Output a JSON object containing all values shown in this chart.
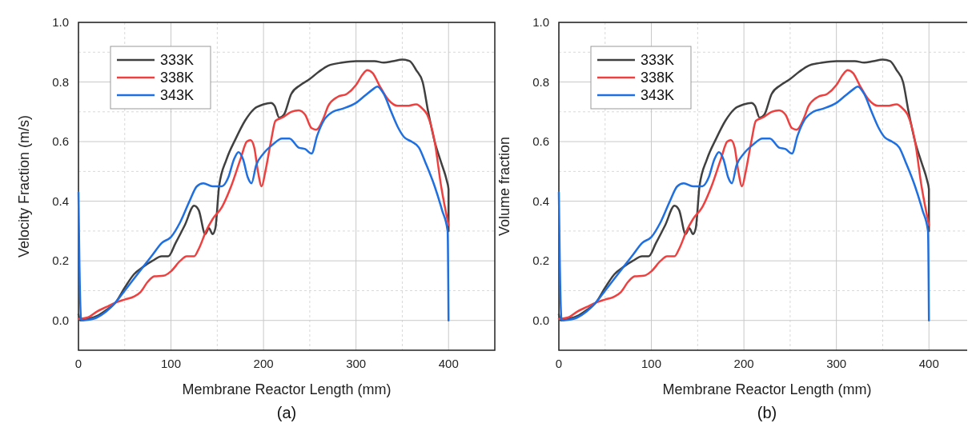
{
  "chart_data": [
    {
      "type": "line",
      "xlabel": "Membrane Reactor Length (mm)",
      "ylabel": "Velocity Fraction (m/s)",
      "annotations": [
        "(a)"
      ],
      "xlim": [
        0,
        450
      ],
      "ylim": [
        -0.1,
        1.0
      ],
      "xticks": [
        0,
        100,
        200,
        300,
        400
      ],
      "yticks": [
        {
          "value": 0,
          "label": "0.0"
        },
        {
          "value": 0.2,
          "label": "0.2"
        },
        {
          "value": 0.4,
          "label": "0.4"
        },
        {
          "value": 0.6,
          "label": "0.6"
        },
        {
          "value": 0.8,
          "label": "0.8"
        },
        {
          "value": 1.0,
          "label": "1.0"
        }
      ],
      "grid": true,
      "legend": "top left",
      "marker": "none",
      "line_style": "solid",
      "series": [
        {
          "name": "333K",
          "color": "#404040",
          "x": [
            0,
            2,
            10,
            20,
            30,
            40,
            50,
            60,
            70,
            80,
            90,
            97,
            105,
            115,
            125,
            130,
            137,
            141,
            145,
            148,
            152,
            160,
            170,
            180,
            190,
            200,
            208,
            212,
            217,
            222,
            230,
            240,
            250,
            260,
            270,
            285,
            300,
            320,
            330,
            340,
            350,
            358,
            365,
            372,
            378,
            385,
            392,
            398,
            400,
            400
          ],
          "values": [
            0.02,
            0,
            0.005,
            0.015,
            0.035,
            0.06,
            0.11,
            0.155,
            0.18,
            0.2,
            0.215,
            0.215,
            0.26,
            0.32,
            0.385,
            0.37,
            0.29,
            0.31,
            0.29,
            0.31,
            0.45,
            0.54,
            0.61,
            0.67,
            0.71,
            0.725,
            0.73,
            0.72,
            0.68,
            0.69,
            0.76,
            0.79,
            0.81,
            0.835,
            0.855,
            0.865,
            0.87,
            0.87,
            0.865,
            0.87,
            0.875,
            0.87,
            0.84,
            0.8,
            0.7,
            0.6,
            0.53,
            0.47,
            0.44,
            0.3
          ]
        },
        {
          "name": "338K",
          "color": "#ef4040",
          "x": [
            0,
            10,
            20,
            30,
            40,
            50,
            60,
            67,
            75,
            82,
            92,
            100,
            110,
            117,
            125,
            130,
            138,
            145,
            155,
            165,
            175,
            182,
            186,
            190,
            194,
            198,
            202,
            208,
            213,
            220,
            230,
            238,
            245,
            252,
            257,
            265,
            270,
            280,
            290,
            300,
            307,
            312,
            318,
            325,
            335,
            345,
            355,
            365,
            372,
            377,
            385,
            392,
            400
          ],
          "values": [
            0.005,
            0.01,
            0.03,
            0.045,
            0.06,
            0.07,
            0.08,
            0.095,
            0.13,
            0.148,
            0.15,
            0.165,
            0.2,
            0.215,
            0.215,
            0.24,
            0.3,
            0.34,
            0.38,
            0.45,
            0.54,
            0.6,
            0.605,
            0.58,
            0.5,
            0.45,
            0.5,
            0.6,
            0.67,
            0.68,
            0.7,
            0.705,
            0.69,
            0.645,
            0.64,
            0.68,
            0.72,
            0.75,
            0.76,
            0.79,
            0.825,
            0.84,
            0.83,
            0.79,
            0.74,
            0.72,
            0.72,
            0.725,
            0.71,
            0.69,
            0.6,
            0.45,
            0.32
          ]
        },
        {
          "name": "343K",
          "color": "#1f6fe0",
          "x": [
            0,
            1,
            3,
            10,
            20,
            30,
            40,
            50,
            60,
            70,
            80,
            90,
            100,
            110,
            120,
            128,
            135,
            145,
            155,
            162,
            168,
            173,
            178,
            183,
            187,
            192,
            200,
            210,
            220,
            228,
            238,
            245,
            252,
            258,
            265,
            275,
            285,
            300,
            310,
            318,
            323,
            330,
            338,
            345,
            352,
            360,
            368,
            375,
            385,
            393,
            399,
            400
          ],
          "values": [
            0.43,
            0.2,
            0,
            0.002,
            0.01,
            0.03,
            0.06,
            0.1,
            0.14,
            0.18,
            0.22,
            0.26,
            0.28,
            0.33,
            0.4,
            0.45,
            0.46,
            0.45,
            0.45,
            0.48,
            0.54,
            0.565,
            0.54,
            0.48,
            0.46,
            0.52,
            0.56,
            0.59,
            0.61,
            0.61,
            0.58,
            0.575,
            0.56,
            0.62,
            0.67,
            0.7,
            0.71,
            0.73,
            0.755,
            0.775,
            0.785,
            0.76,
            0.7,
            0.65,
            0.615,
            0.6,
            0.58,
            0.53,
            0.45,
            0.37,
            0.3,
            0
          ]
        }
      ]
    },
    {
      "type": "line",
      "xlabel": "Membrane Reactor Length (mm)",
      "ylabel": "Volume fraction",
      "annotations": [
        "(b)"
      ],
      "xlim": [
        0,
        450
      ],
      "ylim": [
        -0.1,
        1.0
      ],
      "xticks": [
        0,
        100,
        200,
        300,
        400
      ],
      "yticks": [
        {
          "value": 0,
          "label": "0.0"
        },
        {
          "value": 0.2,
          "label": "0.2"
        },
        {
          "value": 0.4,
          "label": "0.4"
        },
        {
          "value": 0.6,
          "label": "0.6"
        },
        {
          "value": 0.8,
          "label": "0.8"
        },
        {
          "value": 1.0,
          "label": "1.0"
        }
      ],
      "grid": true,
      "legend": "top left",
      "marker": "none",
      "line_style": "solid",
      "series": [
        {
          "name": "333K",
          "color": "#404040",
          "x": [
            0,
            2,
            10,
            20,
            30,
            40,
            50,
            60,
            70,
            80,
            90,
            97,
            105,
            115,
            125,
            130,
            137,
            141,
            145,
            148,
            152,
            160,
            170,
            180,
            190,
            200,
            208,
            212,
            217,
            222,
            230,
            240,
            250,
            260,
            270,
            285,
            300,
            320,
            330,
            340,
            350,
            358,
            365,
            372,
            378,
            385,
            392,
            398,
            400,
            400
          ],
          "values": [
            0.02,
            0,
            0.005,
            0.015,
            0.035,
            0.06,
            0.11,
            0.155,
            0.18,
            0.2,
            0.215,
            0.215,
            0.26,
            0.32,
            0.385,
            0.37,
            0.29,
            0.31,
            0.29,
            0.31,
            0.45,
            0.54,
            0.61,
            0.67,
            0.71,
            0.725,
            0.73,
            0.72,
            0.68,
            0.69,
            0.76,
            0.79,
            0.81,
            0.835,
            0.855,
            0.865,
            0.87,
            0.87,
            0.865,
            0.87,
            0.875,
            0.87,
            0.84,
            0.8,
            0.7,
            0.6,
            0.53,
            0.47,
            0.44,
            0.3
          ]
        },
        {
          "name": "338K",
          "color": "#ef4040",
          "x": [
            0,
            10,
            20,
            30,
            40,
            50,
            60,
            67,
            75,
            82,
            92,
            100,
            110,
            117,
            125,
            130,
            138,
            145,
            155,
            165,
            175,
            182,
            186,
            190,
            194,
            198,
            202,
            208,
            213,
            220,
            230,
            238,
            245,
            252,
            257,
            265,
            270,
            280,
            290,
            300,
            307,
            312,
            318,
            325,
            335,
            345,
            355,
            365,
            372,
            377,
            385,
            392,
            400
          ],
          "values": [
            0.005,
            0.01,
            0.03,
            0.045,
            0.06,
            0.07,
            0.08,
            0.095,
            0.13,
            0.148,
            0.15,
            0.165,
            0.2,
            0.215,
            0.215,
            0.24,
            0.3,
            0.34,
            0.38,
            0.45,
            0.54,
            0.6,
            0.605,
            0.58,
            0.5,
            0.45,
            0.5,
            0.6,
            0.67,
            0.68,
            0.7,
            0.705,
            0.69,
            0.645,
            0.64,
            0.68,
            0.72,
            0.75,
            0.76,
            0.79,
            0.825,
            0.84,
            0.83,
            0.79,
            0.74,
            0.72,
            0.72,
            0.725,
            0.71,
            0.69,
            0.6,
            0.45,
            0.32
          ]
        },
        {
          "name": "343K",
          "color": "#1f6fe0",
          "x": [
            0,
            1,
            3,
            10,
            20,
            30,
            40,
            50,
            60,
            70,
            80,
            90,
            100,
            110,
            120,
            128,
            135,
            145,
            155,
            162,
            168,
            173,
            178,
            183,
            187,
            192,
            200,
            210,
            220,
            228,
            238,
            245,
            252,
            258,
            265,
            275,
            285,
            300,
            310,
            318,
            323,
            330,
            338,
            345,
            352,
            360,
            368,
            375,
            385,
            393,
            399,
            400
          ],
          "values": [
            0.43,
            0.2,
            0,
            0.002,
            0.01,
            0.03,
            0.06,
            0.1,
            0.14,
            0.18,
            0.22,
            0.26,
            0.28,
            0.33,
            0.4,
            0.45,
            0.46,
            0.45,
            0.45,
            0.48,
            0.54,
            0.565,
            0.54,
            0.48,
            0.46,
            0.52,
            0.56,
            0.59,
            0.61,
            0.61,
            0.58,
            0.575,
            0.56,
            0.62,
            0.67,
            0.7,
            0.71,
            0.73,
            0.755,
            0.775,
            0.785,
            0.76,
            0.7,
            0.65,
            0.615,
            0.6,
            0.58,
            0.53,
            0.45,
            0.37,
            0.3,
            0
          ]
        }
      ]
    }
  ]
}
